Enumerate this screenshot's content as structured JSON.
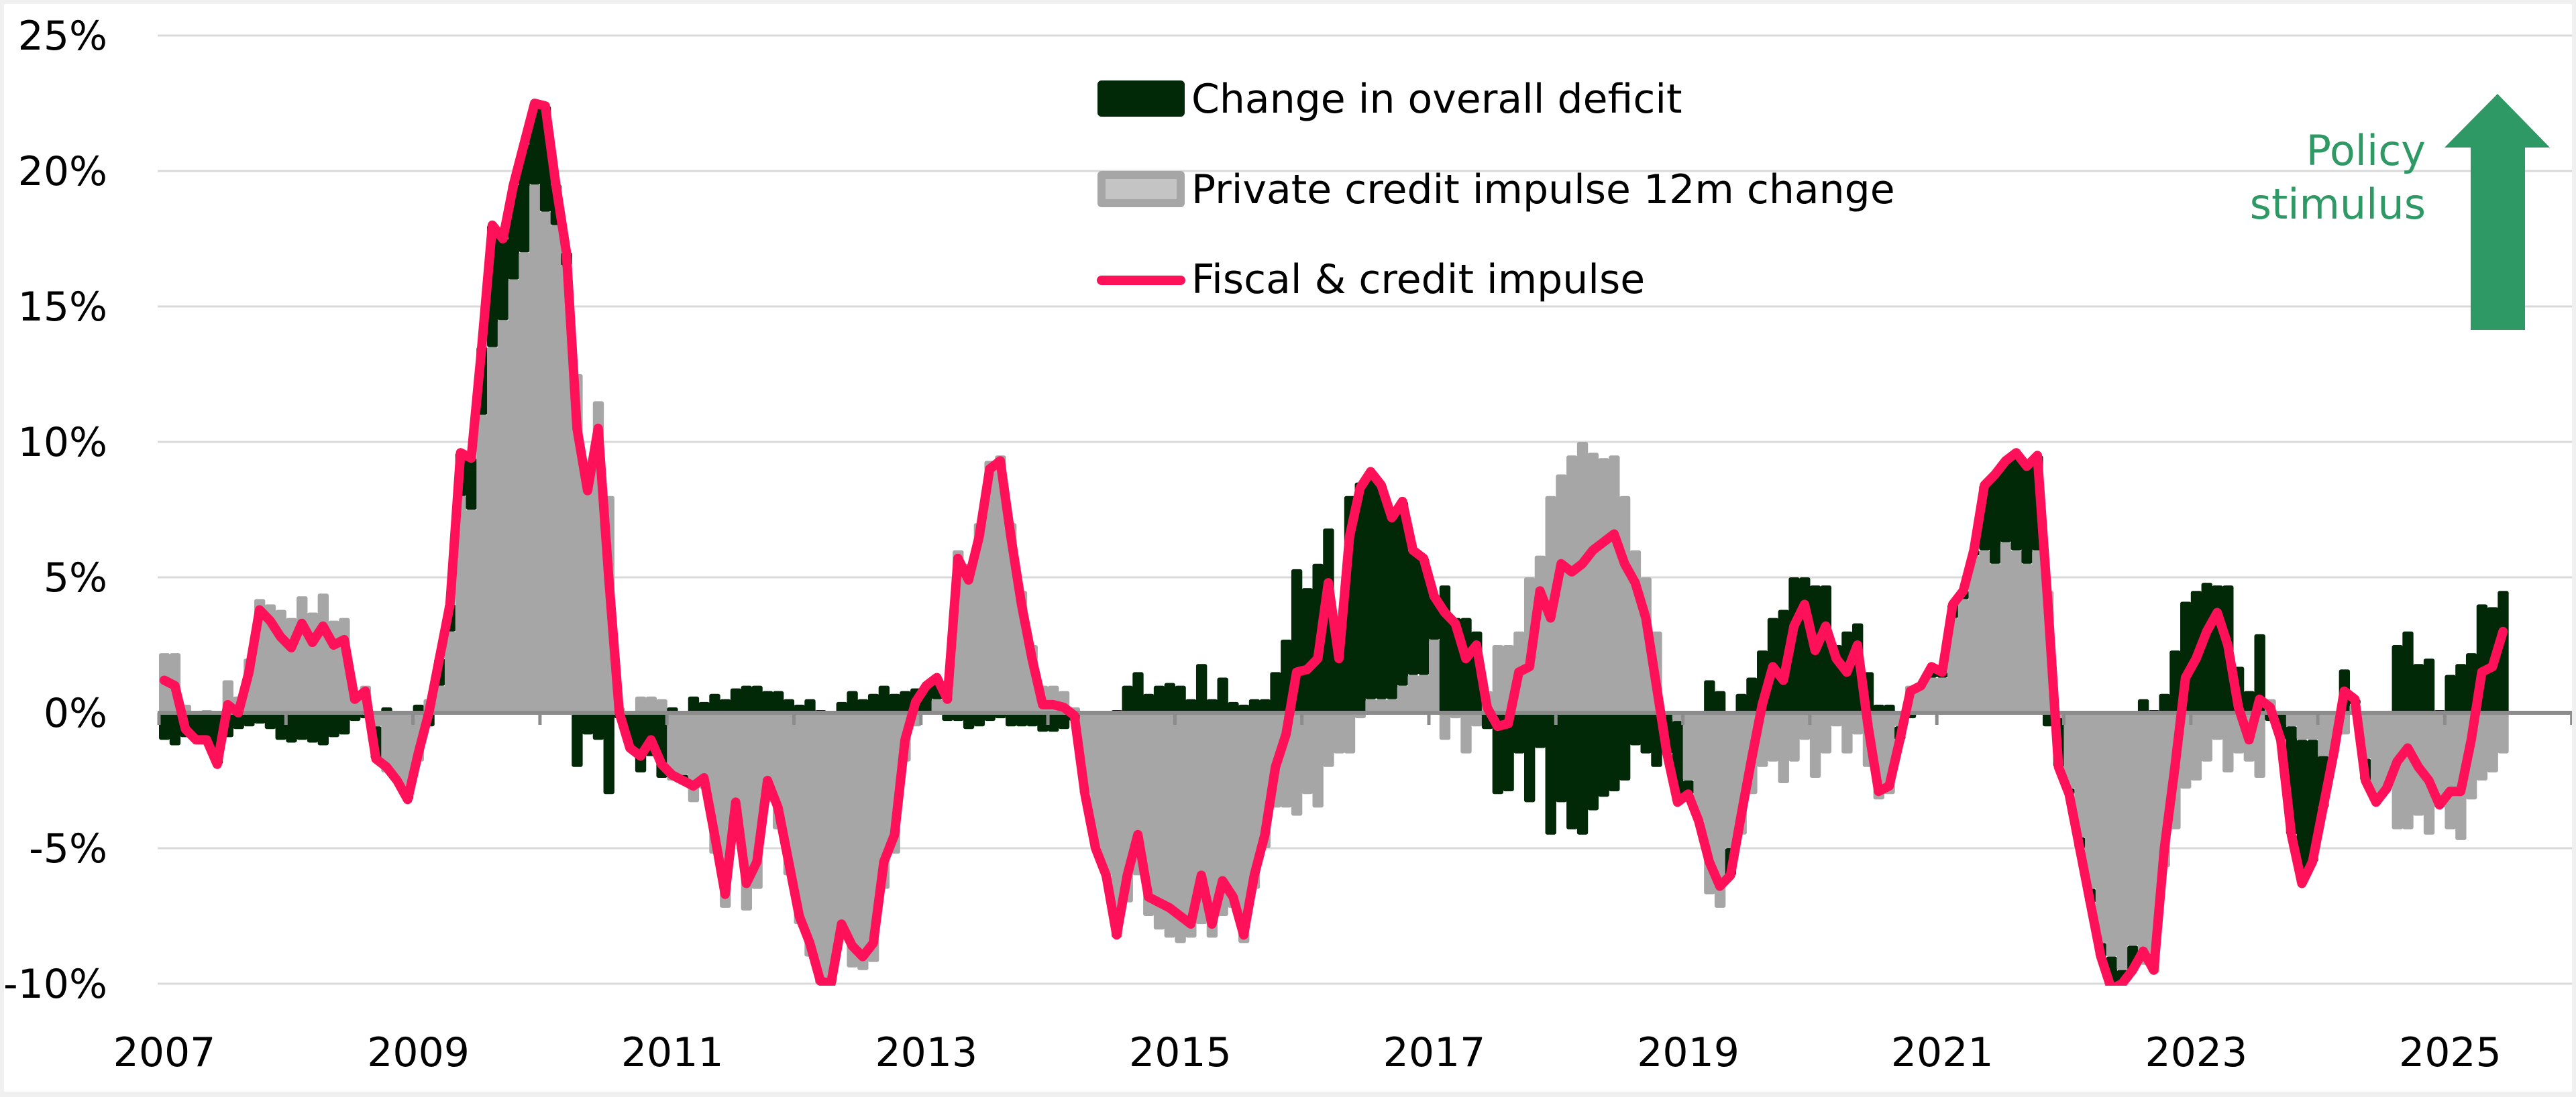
{
  "chart_data": {
    "type": "bar",
    "subtype": "stacked-bar-with-line",
    "title": "",
    "xlabel": "",
    "ylabel": "",
    "ylim": [
      -10,
      25
    ],
    "y_ticks": [
      "25%",
      "20%",
      "15%",
      "10%",
      "5%",
      "0%",
      "-5%",
      "-10%"
    ],
    "y_tick_values": [
      25,
      20,
      15,
      10,
      5,
      0,
      -5,
      -10
    ],
    "x_ticks": [
      "2007",
      "2009",
      "2011",
      "2013",
      "2015",
      "2017",
      "2019",
      "2021",
      "2023",
      "2025"
    ],
    "x_range": [
      "2007-01",
      "2026-01"
    ],
    "grid": true,
    "frequency": "monthly",
    "start": "2007-01",
    "end": "2025-06",
    "legend": {
      "placement": "top-center",
      "entries": [
        {
          "label": "Change in overall deficit",
          "kind": "bar",
          "color": "#022907"
        },
        {
          "label": "Private credit impulse 12m change",
          "kind": "bar",
          "color": "#a6a6a6"
        },
        {
          "label": "Fiscal & credit impulse",
          "kind": "line",
          "color": "#ff1159"
        }
      ]
    },
    "annotation": {
      "lines": [
        "Policy",
        "stimulus"
      ],
      "color": "#2e9964",
      "arrow": "up-arrow"
    },
    "series": [
      {
        "name": "Private credit impulse 12m change",
        "type": "bar",
        "color": "#a6a6a6",
        "values": [
          2.2,
          2.2,
          0.3,
          0.0,
          0.1,
          0.0,
          1.2,
          0.6,
          2.0,
          4.2,
          4.0,
          3.8,
          3.5,
          4.3,
          3.7,
          4.4,
          3.4,
          3.5,
          0.8,
          1.0,
          -0.5,
          -2.2,
          -2.5,
          -3.0,
          -1.8,
          0.5,
          1.0,
          3.0,
          8.0,
          7.5,
          11.0,
          13.5,
          14.5,
          16.0,
          17.0,
          19.5,
          18.5,
          18.0,
          16.5,
          12.5,
          9.0,
          11.5,
          8.0,
          0.2,
          0.0,
          0.6,
          0.6,
          0.5,
          -2.5,
          -2.3,
          -3.3,
          -2.8,
          -5.2,
          -7.2,
          -4.2,
          -7.3,
          -6.5,
          -3.3,
          -4.3,
          -6.0,
          -7.8,
          -9.0,
          -10.0,
          -10.0,
          -8.2,
          -9.4,
          -9.5,
          -9.2,
          -6.5,
          -5.2,
          -1.8,
          -0.5,
          0.0,
          0.5,
          0.8,
          6.0,
          5.5,
          7.0,
          9.3,
          9.5,
          7.0,
          4.5,
          2.5,
          1.0,
          1.0,
          0.8,
          0.2,
          -3.0,
          -5.0,
          -6.0,
          -8.3,
          -7.0,
          -6.0,
          -7.5,
          -8.0,
          -8.3,
          -8.5,
          -8.3,
          -7.8,
          -8.3,
          -7.5,
          -7.2,
          -8.5,
          -6.5,
          -5.0,
          -3.5,
          -3.5,
          -3.8,
          -3.0,
          -3.5,
          -2.0,
          -1.5,
          -1.5,
          -0.2,
          0.5,
          0.5,
          0.5,
          1.0,
          1.4,
          1.4,
          2.7,
          -1.0,
          -0.2,
          -1.5,
          -0.5,
          0.8,
          2.5,
          2.5,
          3.0,
          5.0,
          5.8,
          8.0,
          8.8,
          9.5,
          10.0,
          9.6,
          9.4,
          9.5,
          8.0,
          6.0,
          5.0,
          3.0,
          0.0,
          -0.3,
          -2.5,
          -4.0,
          -6.7,
          -7.2,
          -5.0,
          -4.5,
          -3.0,
          -2.0,
          -1.8,
          -2.6,
          -1.8,
          -1.0,
          -2.4,
          -1.5,
          -0.5,
          -1.5,
          -0.8,
          -2.0,
          -3.2,
          -3.0,
          -0.5,
          1.0,
          1.0,
          1.3,
          1.3,
          3.5,
          4.2,
          5.8,
          6.0,
          5.5,
          6.3,
          6.0,
          5.5,
          6.0,
          4.5,
          -0.2,
          -2.8,
          -4.6,
          -6.5,
          -8.5,
          -9.0,
          -9.5,
          -8.6,
          -9.3,
          -9.6,
          -5.7,
          -4.3,
          -2.8,
          -2.5,
          -1.8,
          -1.0,
          -2.2,
          -1.5,
          -1.8,
          -2.4,
          0.5,
          0.0,
          -0.5,
          -1.0,
          -1.0,
          -1.6,
          -1.5,
          -0.8,
          0.3,
          -1.7,
          -3.2,
          -2.8,
          -4.3,
          -4.3,
          -3.8,
          -4.5,
          -3.5,
          -4.3,
          -4.7,
          -3.2,
          -2.5,
          -2.2,
          -1.5
        ]
      },
      {
        "name": "Change in overall deficit",
        "type": "bar",
        "color": "#022907",
        "values": [
          -1.0,
          -1.2,
          -0.9,
          -1.0,
          -1.1,
          -1.9,
          -0.9,
          -0.6,
          -0.5,
          -0.4,
          -0.6,
          -1.0,
          -1.1,
          -1.0,
          -1.1,
          -1.2,
          -0.9,
          -0.8,
          -0.3,
          -0.2,
          -1.2,
          0.2,
          0.0,
          -0.2,
          0.3,
          -0.5,
          1.0,
          1.0,
          1.6,
          1.9,
          2.5,
          4.5,
          3.0,
          3.5,
          4.0,
          3.0,
          3.9,
          1.5,
          0.5,
          -2.0,
          -0.8,
          -1.0,
          -3.0,
          -0.2,
          -1.3,
          -2.2,
          -1.6,
          -2.4,
          0.2,
          -0.2,
          0.6,
          0.4,
          0.7,
          0.5,
          0.9,
          1.0,
          1.0,
          0.8,
          0.8,
          0.5,
          0.3,
          0.5,
          0.1,
          0.0,
          0.4,
          0.8,
          0.5,
          0.7,
          1.0,
          0.7,
          0.8,
          0.9,
          1.0,
          0.8,
          -0.3,
          -0.3,
          -0.6,
          -0.5,
          -0.3,
          -0.2,
          -0.5,
          -0.5,
          -0.5,
          -0.7,
          -0.7,
          -0.6,
          -0.3,
          0.0,
          0.0,
          0.0,
          0.1,
          1.0,
          1.5,
          0.7,
          1.0,
          1.1,
          1.0,
          0.5,
          1.8,
          0.5,
          1.3,
          0.4,
          0.3,
          0.5,
          0.5,
          1.5,
          2.7,
          5.3,
          4.6,
          5.5,
          6.8,
          3.5,
          8.0,
          8.5,
          8.4,
          7.9,
          6.7,
          6.8,
          4.6,
          4.3,
          1.6,
          4.7,
          3.5,
          3.5,
          3.0,
          -0.6,
          -3.0,
          -2.9,
          -1.5,
          -3.3,
          -1.3,
          -4.5,
          -3.3,
          -4.3,
          -4.5,
          -3.6,
          -3.1,
          -2.9,
          -2.5,
          -1.2,
          -1.5,
          -2.0,
          -1.5,
          -3.0,
          -0.5,
          0.0,
          1.2,
          0.8,
          -1.0,
          0.7,
          1.3,
          2.3,
          3.5,
          3.8,
          5.0,
          5.0,
          4.7,
          4.7,
          2.5,
          3.0,
          3.3,
          1.5,
          0.3,
          0.3,
          -0.5,
          -0.2,
          0.0,
          0.4,
          0.2,
          0.5,
          0.3,
          0.2,
          2.4,
          3.3,
          3.0,
          3.6,
          3.6,
          3.5,
          -0.5,
          -1.8,
          -0.2,
          -0.4,
          -0.5,
          -0.5,
          -1.2,
          -0.5,
          -0.9,
          0.5,
          0.1,
          0.7,
          2.3,
          4.1,
          4.5,
          4.8,
          4.7,
          4.7,
          1.7,
          0.8,
          2.9,
          -0.3,
          -1.0,
          -4.0,
          -5.3,
          -4.5,
          -1.9,
          0.0,
          1.6,
          0.2,
          -0.8,
          -0.1,
          0.0,
          2.5,
          3.0,
          1.8,
          2.0,
          0.1,
          1.4,
          1.8,
          2.2,
          4.0,
          3.9,
          4.5
        ]
      },
      {
        "name": "Fiscal & credit impulse",
        "type": "line",
        "color": "#ff1159",
        "values": [
          1.2,
          1.0,
          -0.6,
          -1.0,
          -1.0,
          -1.9,
          0.3,
          0.0,
          1.5,
          3.8,
          3.4,
          2.8,
          2.4,
          3.3,
          2.6,
          3.2,
          2.5,
          2.7,
          0.5,
          0.8,
          -1.7,
          -2.0,
          -2.5,
          -3.2,
          -1.5,
          0.0,
          2.0,
          4.0,
          9.6,
          9.4,
          13.5,
          18.0,
          17.5,
          19.5,
          21.0,
          22.5,
          22.4,
          19.5,
          17.0,
          10.5,
          8.2,
          10.5,
          5.0,
          0.0,
          -1.3,
          -1.6,
          -1.0,
          -1.9,
          -2.3,
          -2.5,
          -2.7,
          -2.4,
          -4.5,
          -6.7,
          -3.3,
          -6.3,
          -5.5,
          -2.5,
          -3.5,
          -5.5,
          -7.5,
          -8.5,
          -9.9,
          -10.0,
          -7.8,
          -8.6,
          -9.0,
          -8.5,
          -5.5,
          -4.5,
          -1.0,
          0.4,
          1.0,
          1.3,
          0.5,
          5.7,
          4.9,
          6.5,
          9.0,
          9.3,
          6.5,
          4.0,
          2.0,
          0.3,
          0.3,
          0.2,
          -0.1,
          -3.0,
          -5.0,
          -6.0,
          -8.2,
          -6.0,
          -4.5,
          -6.8,
          -7.0,
          -7.2,
          -7.5,
          -7.8,
          -6.0,
          -7.8,
          -6.2,
          -6.8,
          -8.2,
          -6.0,
          -4.5,
          -2.0,
          -0.8,
          1.5,
          1.6,
          2.0,
          4.8,
          2.0,
          6.5,
          8.3,
          8.9,
          8.4,
          7.2,
          7.8,
          6.0,
          5.7,
          4.3,
          3.7,
          3.3,
          2.0,
          2.5,
          0.2,
          -0.5,
          -0.4,
          1.5,
          1.7,
          4.5,
          3.5,
          5.5,
          5.2,
          5.5,
          6.0,
          6.3,
          6.6,
          5.5,
          4.8,
          3.5,
          1.0,
          -1.5,
          -3.3,
          -3.0,
          -4.0,
          -5.5,
          -6.4,
          -6.0,
          -3.8,
          -1.7,
          0.3,
          1.7,
          1.2,
          3.2,
          4.0,
          2.3,
          3.2,
          2.0,
          1.5,
          2.5,
          -0.5,
          -2.9,
          -2.7,
          -1.0,
          0.8,
          1.0,
          1.7,
          1.5,
          4.0,
          4.5,
          6.0,
          8.4,
          8.8,
          9.3,
          9.6,
          9.1,
          9.5,
          4.0,
          -2.0,
          -3.0,
          -5.0,
          -7.0,
          -9.0,
          -10.2,
          -10.0,
          -9.5,
          -8.8,
          -9.5,
          -5.0,
          -2.0,
          1.3,
          2.0,
          3.0,
          3.7,
          2.5,
          0.2,
          -1.0,
          0.5,
          0.2,
          -1.0,
          -4.5,
          -6.3,
          -5.5,
          -3.5,
          -1.5,
          0.8,
          0.5,
          -2.5,
          -3.3,
          -2.8,
          -1.8,
          -1.3,
          -2.0,
          -2.5,
          -3.4,
          -2.9,
          -2.9,
          -1.0,
          1.5,
          1.7,
          3.0
        ]
      }
    ]
  }
}
